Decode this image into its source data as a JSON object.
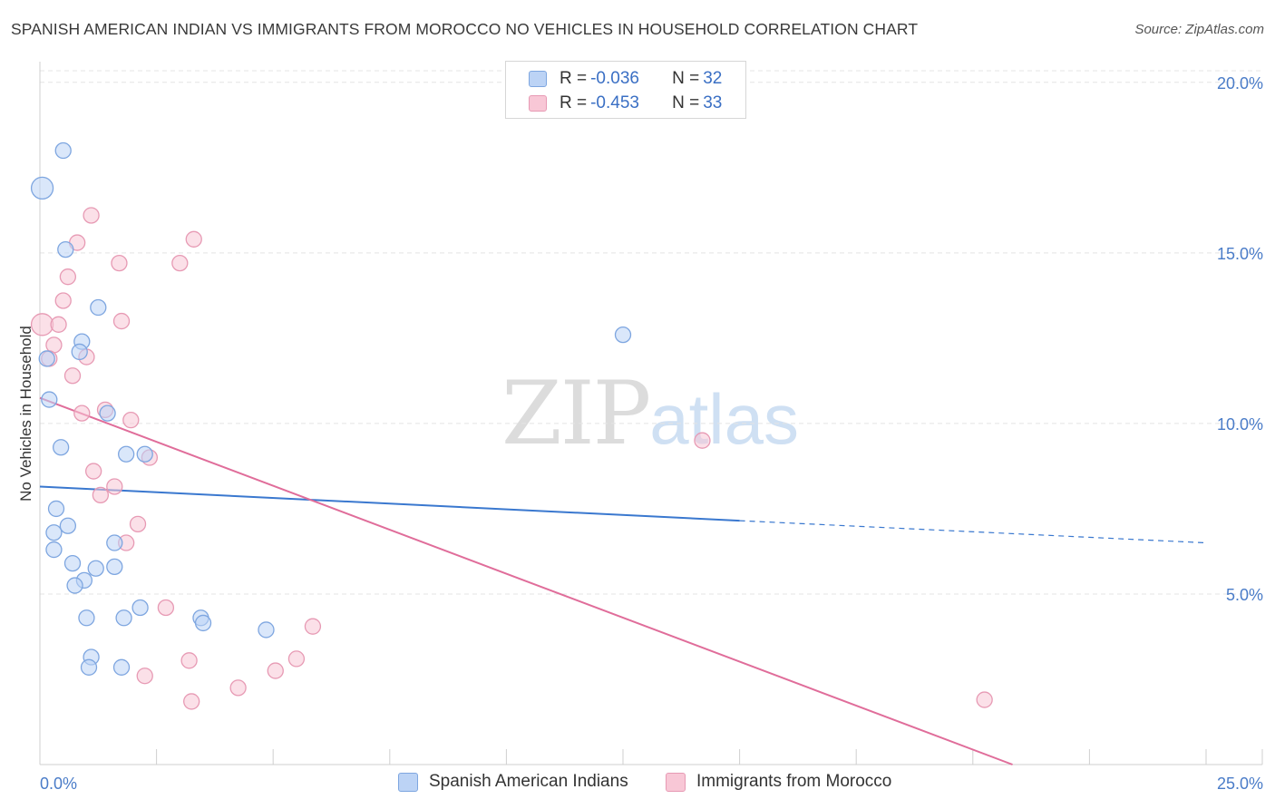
{
  "title": "SPANISH AMERICAN INDIAN VS IMMIGRANTS FROM MOROCCO NO VEHICLES IN HOUSEHOLD CORRELATION CHART",
  "source": "Source: ZipAtlas.com",
  "watermark": {
    "zip": "ZIP",
    "atlas": "atlas"
  },
  "legend": {
    "rows": [
      {
        "r_label": "R = ",
        "r_value": "-0.036",
        "n_label": "N = ",
        "n_value": "32"
      },
      {
        "r_label": "R = ",
        "r_value": "-0.453",
        "n_label": "N = ",
        "n_value": "33"
      }
    ]
  },
  "colors": {
    "blue_fill": "#bcd3f5",
    "blue_stroke": "#7ea6e0",
    "blue_line": "#3a78cf",
    "pink_fill": "#f8c7d6",
    "pink_stroke": "#e79ab4",
    "pink_line": "#e06d9a",
    "grid": "#e4e4e4",
    "tick_text": "#4a7cc8"
  },
  "chart_data": {
    "type": "scatter",
    "title": "SPANISH AMERICAN INDIAN VS IMMIGRANTS FROM MOROCCO NO VEHICLES IN HOUSEHOLD CORRELATION CHART",
    "xlabel": "",
    "ylabel": "No Vehicles in Household",
    "xlim": [
      0,
      25
    ],
    "ylim": [
      0,
      20.5
    ],
    "x_tick_labels": [
      "0.0%",
      "25.0%"
    ],
    "y_ticks": [
      5,
      10,
      15,
      20
    ],
    "y_tick_labels": [
      "5.0%",
      "10.0%",
      "15.0%",
      "20.0%"
    ],
    "grid": true,
    "series": [
      {
        "name": "Spanish American Indians",
        "color": "blue",
        "points": [
          {
            "x": 0.5,
            "y": 18.0
          },
          {
            "x": 0.05,
            "y": 16.9
          },
          {
            "x": 0.55,
            "y": 15.1
          },
          {
            "x": 1.25,
            "y": 13.4
          },
          {
            "x": 12.5,
            "y": 12.6
          },
          {
            "x": 0.9,
            "y": 12.4
          },
          {
            "x": 0.85,
            "y": 12.1
          },
          {
            "x": 0.15,
            "y": 11.9
          },
          {
            "x": 0.2,
            "y": 10.7
          },
          {
            "x": 1.45,
            "y": 10.3
          },
          {
            "x": 0.45,
            "y": 9.3
          },
          {
            "x": 1.85,
            "y": 9.1
          },
          {
            "x": 2.25,
            "y": 9.1
          },
          {
            "x": 0.35,
            "y": 7.5
          },
          {
            "x": 0.6,
            "y": 7.0
          },
          {
            "x": 0.3,
            "y": 6.8
          },
          {
            "x": 1.6,
            "y": 6.5
          },
          {
            "x": 0.3,
            "y": 6.3
          },
          {
            "x": 0.7,
            "y": 5.9
          },
          {
            "x": 1.2,
            "y": 5.75
          },
          {
            "x": 1.6,
            "y": 5.8
          },
          {
            "x": 0.95,
            "y": 5.4
          },
          {
            "x": 0.75,
            "y": 5.25
          },
          {
            "x": 2.15,
            "y": 4.6
          },
          {
            "x": 1.0,
            "y": 4.3
          },
          {
            "x": 1.8,
            "y": 4.3
          },
          {
            "x": 3.45,
            "y": 4.3
          },
          {
            "x": 3.5,
            "y": 4.15
          },
          {
            "x": 4.85,
            "y": 3.95
          },
          {
            "x": 1.1,
            "y": 3.15
          },
          {
            "x": 1.05,
            "y": 2.85
          },
          {
            "x": 1.75,
            "y": 2.85
          }
        ],
        "trend": {
          "x": [
            0,
            15
          ],
          "y": [
            8.15,
            7.15
          ],
          "dashed_extension": {
            "x": [
              15,
              25
            ],
            "y": [
              7.15,
              6.5
            ]
          }
        }
      },
      {
        "name": "Immigrants from Morocco",
        "color": "pink",
        "points": [
          {
            "x": 1.1,
            "y": 16.1
          },
          {
            "x": 0.8,
            "y": 15.3
          },
          {
            "x": 3.3,
            "y": 15.4
          },
          {
            "x": 1.7,
            "y": 14.7
          },
          {
            "x": 3.0,
            "y": 14.7
          },
          {
            "x": 0.6,
            "y": 14.3
          },
          {
            "x": 0.5,
            "y": 13.6
          },
          {
            "x": 1.75,
            "y": 13.0
          },
          {
            "x": 0.05,
            "y": 12.9
          },
          {
            "x": 0.4,
            "y": 12.9
          },
          {
            "x": 0.3,
            "y": 12.3
          },
          {
            "x": 0.2,
            "y": 11.9
          },
          {
            "x": 1.0,
            "y": 11.95
          },
          {
            "x": 0.7,
            "y": 11.4
          },
          {
            "x": 0.9,
            "y": 10.3
          },
          {
            "x": 1.4,
            "y": 10.4
          },
          {
            "x": 1.95,
            "y": 10.1
          },
          {
            "x": 14.2,
            "y": 9.5
          },
          {
            "x": 2.35,
            "y": 9.0
          },
          {
            "x": 1.15,
            "y": 8.6
          },
          {
            "x": 1.6,
            "y": 8.15
          },
          {
            "x": 1.3,
            "y": 7.9
          },
          {
            "x": 2.1,
            "y": 7.05
          },
          {
            "x": 1.85,
            "y": 6.5
          },
          {
            "x": 2.7,
            "y": 4.6
          },
          {
            "x": 5.85,
            "y": 4.05
          },
          {
            "x": 5.5,
            "y": 3.1
          },
          {
            "x": 3.2,
            "y": 3.05
          },
          {
            "x": 5.05,
            "y": 2.75
          },
          {
            "x": 2.25,
            "y": 2.6
          },
          {
            "x": 4.25,
            "y": 2.25
          },
          {
            "x": 3.25,
            "y": 1.85
          },
          {
            "x": 20.25,
            "y": 1.9
          }
        ],
        "trend": {
          "x": [
            0,
            20.85
          ],
          "y": [
            10.75,
            0
          ]
        }
      }
    ]
  }
}
